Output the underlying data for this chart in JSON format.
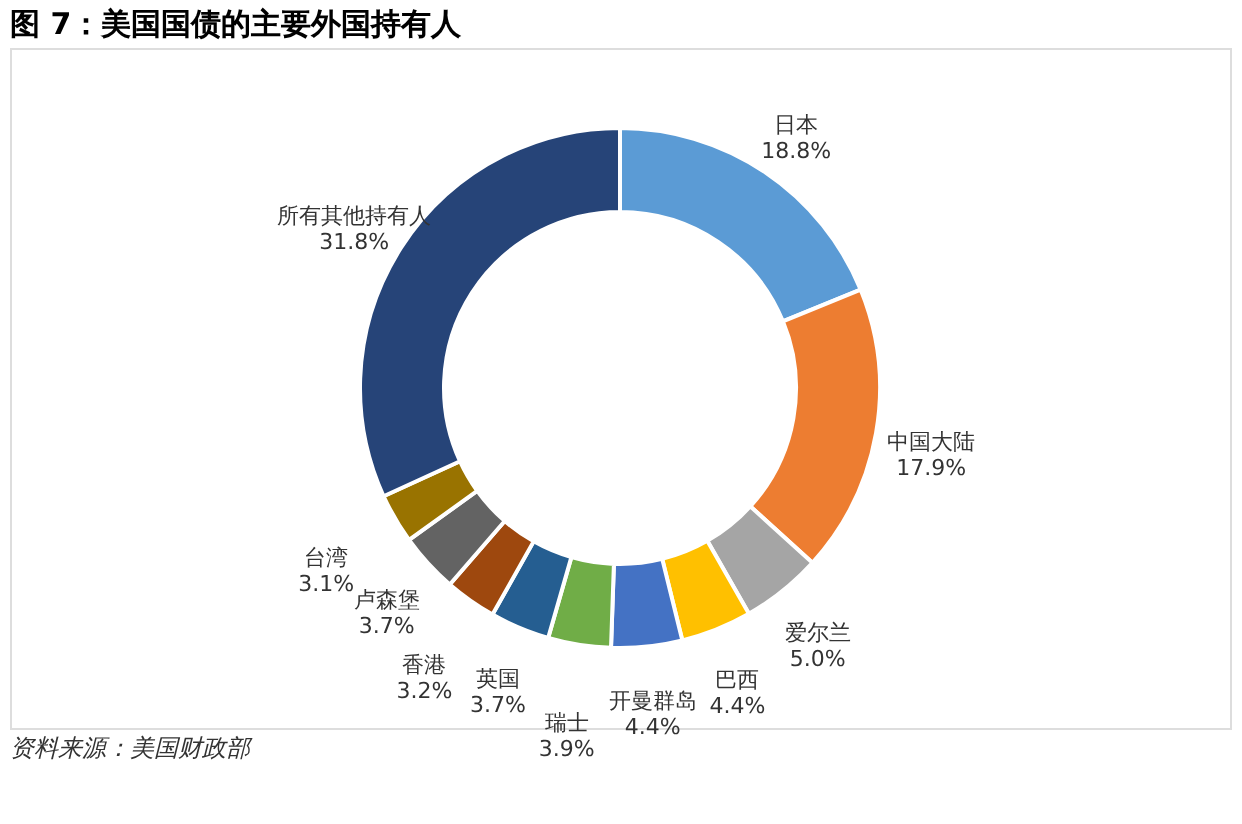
{
  "chart_data": {
    "type": "donut",
    "title": "图 7：美国国债的主要外国持有人",
    "categories": [
      "日本",
      "中国大陆",
      "爱尔兰",
      "巴西",
      "开曼群岛",
      "瑞士",
      "英国",
      "香港",
      "卢森堡",
      "台湾",
      "所有其他持有人"
    ],
    "values": [
      18.8,
      17.9,
      5.0,
      4.4,
      4.4,
      3.9,
      3.7,
      3.2,
      3.7,
      3.1,
      31.8
    ],
    "value_labels": [
      "18.8%",
      "17.9%",
      "5.0%",
      "4.4%",
      "4.4%",
      "3.9%",
      "3.7%",
      "3.2%",
      "3.7%",
      "3.1%",
      "31.8%"
    ],
    "colors": [
      "#5b9bd5",
      "#ed7d31",
      "#a5a5a5",
      "#ffc000",
      "#4472c4",
      "#70ad47",
      "#255e91",
      "#9e480e",
      "#636363",
      "#997300",
      "#264478"
    ],
    "legend": false,
    "annotations": [
      "资料来源：美国财政部"
    ]
  }
}
